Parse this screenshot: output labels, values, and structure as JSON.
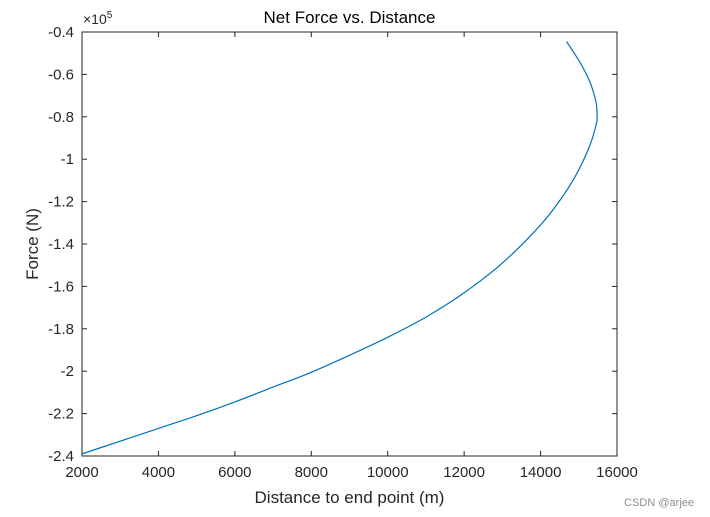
{
  "chart_data": {
    "type": "line",
    "title": "Net Force vs. Distance",
    "xlabel": "Distance to end point (m)",
    "ylabel": "Force (N)",
    "y_exponent": {
      "base": "×10",
      "power": "5"
    },
    "xlim": [
      2000,
      16000
    ],
    "ylim": [
      -2.4,
      -0.4
    ],
    "x_ticks": [
      2000,
      4000,
      6000,
      8000,
      10000,
      12000,
      14000,
      16000
    ],
    "y_ticks": [
      -2.4,
      -2.2,
      -2,
      -1.8,
      -1.6,
      -1.4,
      -1.2,
      -1,
      -0.8,
      -0.6,
      -0.4
    ],
    "x_tick_labels": [
      "2000",
      "4000",
      "6000",
      "8000",
      "10000",
      "12000",
      "14000",
      "16000"
    ],
    "y_tick_labels": [
      "-2.4",
      "-2.2",
      "-2",
      "-1.8",
      "-1.6",
      "-1.4",
      "-1.2",
      "-1",
      "-0.8",
      "-0.6",
      "-0.4"
    ],
    "grid": false,
    "series": [
      {
        "color": "#0072bd",
        "x": [
          2000,
          3000,
          4000,
          5000,
          6000,
          7000,
          8000,
          9000,
          10000,
          11000,
          12000,
          13000,
          14000,
          14600,
          15000,
          15300,
          15450,
          15480,
          15450,
          15300,
          15100,
          14900,
          14680
        ],
        "y": [
          -2.39,
          -2.33,
          -2.27,
          -2.21,
          -2.145,
          -2.075,
          -2.005,
          -1.925,
          -1.84,
          -1.745,
          -1.63,
          -1.49,
          -1.31,
          -1.17,
          -1.05,
          -0.93,
          -0.84,
          -0.8,
          -0.73,
          -0.64,
          -0.565,
          -0.505,
          -0.445
        ]
      }
    ]
  },
  "watermark": "CSDN @arjee"
}
